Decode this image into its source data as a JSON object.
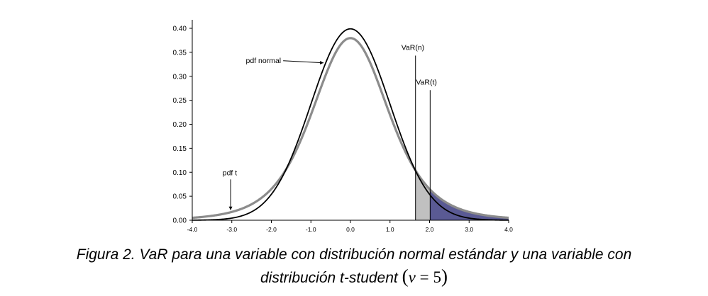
{
  "chart_data": {
    "type": "line",
    "x_range": [
      -4.0,
      4.0
    ],
    "ylim": [
      0.0,
      0.4
    ],
    "x_ticks": [
      "-4.0",
      "-3.0",
      "-2.0",
      "-1.0",
      "0.0",
      "1.0",
      "2.0",
      "3.0",
      "4.0"
    ],
    "y_ticks": [
      "0.00",
      "0.05",
      "0.10",
      "0.15",
      "0.20",
      "0.25",
      "0.30",
      "0.35",
      "0.40"
    ],
    "grid": false,
    "series": [
      {
        "name": "pdf normal",
        "distribution": "normal",
        "color": "#000000"
      },
      {
        "name": "pdf t",
        "distribution": "t-student",
        "df": 5,
        "color": "#8c8c8c"
      }
    ],
    "markers": [
      {
        "label": "VaR(n)",
        "x": 1.645,
        "label_y": 0.355
      },
      {
        "label": "VaR(t)",
        "x": 2.015,
        "label_y": 0.283
      }
    ],
    "shaded_regions": [
      {
        "from": 1.645,
        "to": 2.015,
        "under": "pdf t",
        "color": "#c0c0c0"
      },
      {
        "from": 2.015,
        "to": 4.0,
        "under": "pdf t",
        "color": "#5a5a94"
      }
    ],
    "annotations": [
      {
        "text": "pdf normal",
        "text_x": -2.2,
        "text_y": 0.328,
        "points_to_x": -0.68,
        "points_to_y": 0.328
      },
      {
        "text": "pdf t",
        "text_x": -3.05,
        "text_y": 0.094,
        "points_to_x": -3.03,
        "points_to_y": 0.021
      }
    ]
  },
  "caption": {
    "line1": "Figura 2. VaR para una variable con distribución normal estándar y una variable con",
    "line2": "distribución t-student",
    "math_open": "(",
    "math_var": "ν",
    "math_eq": "=",
    "math_num": "5",
    "math_close": ")"
  }
}
